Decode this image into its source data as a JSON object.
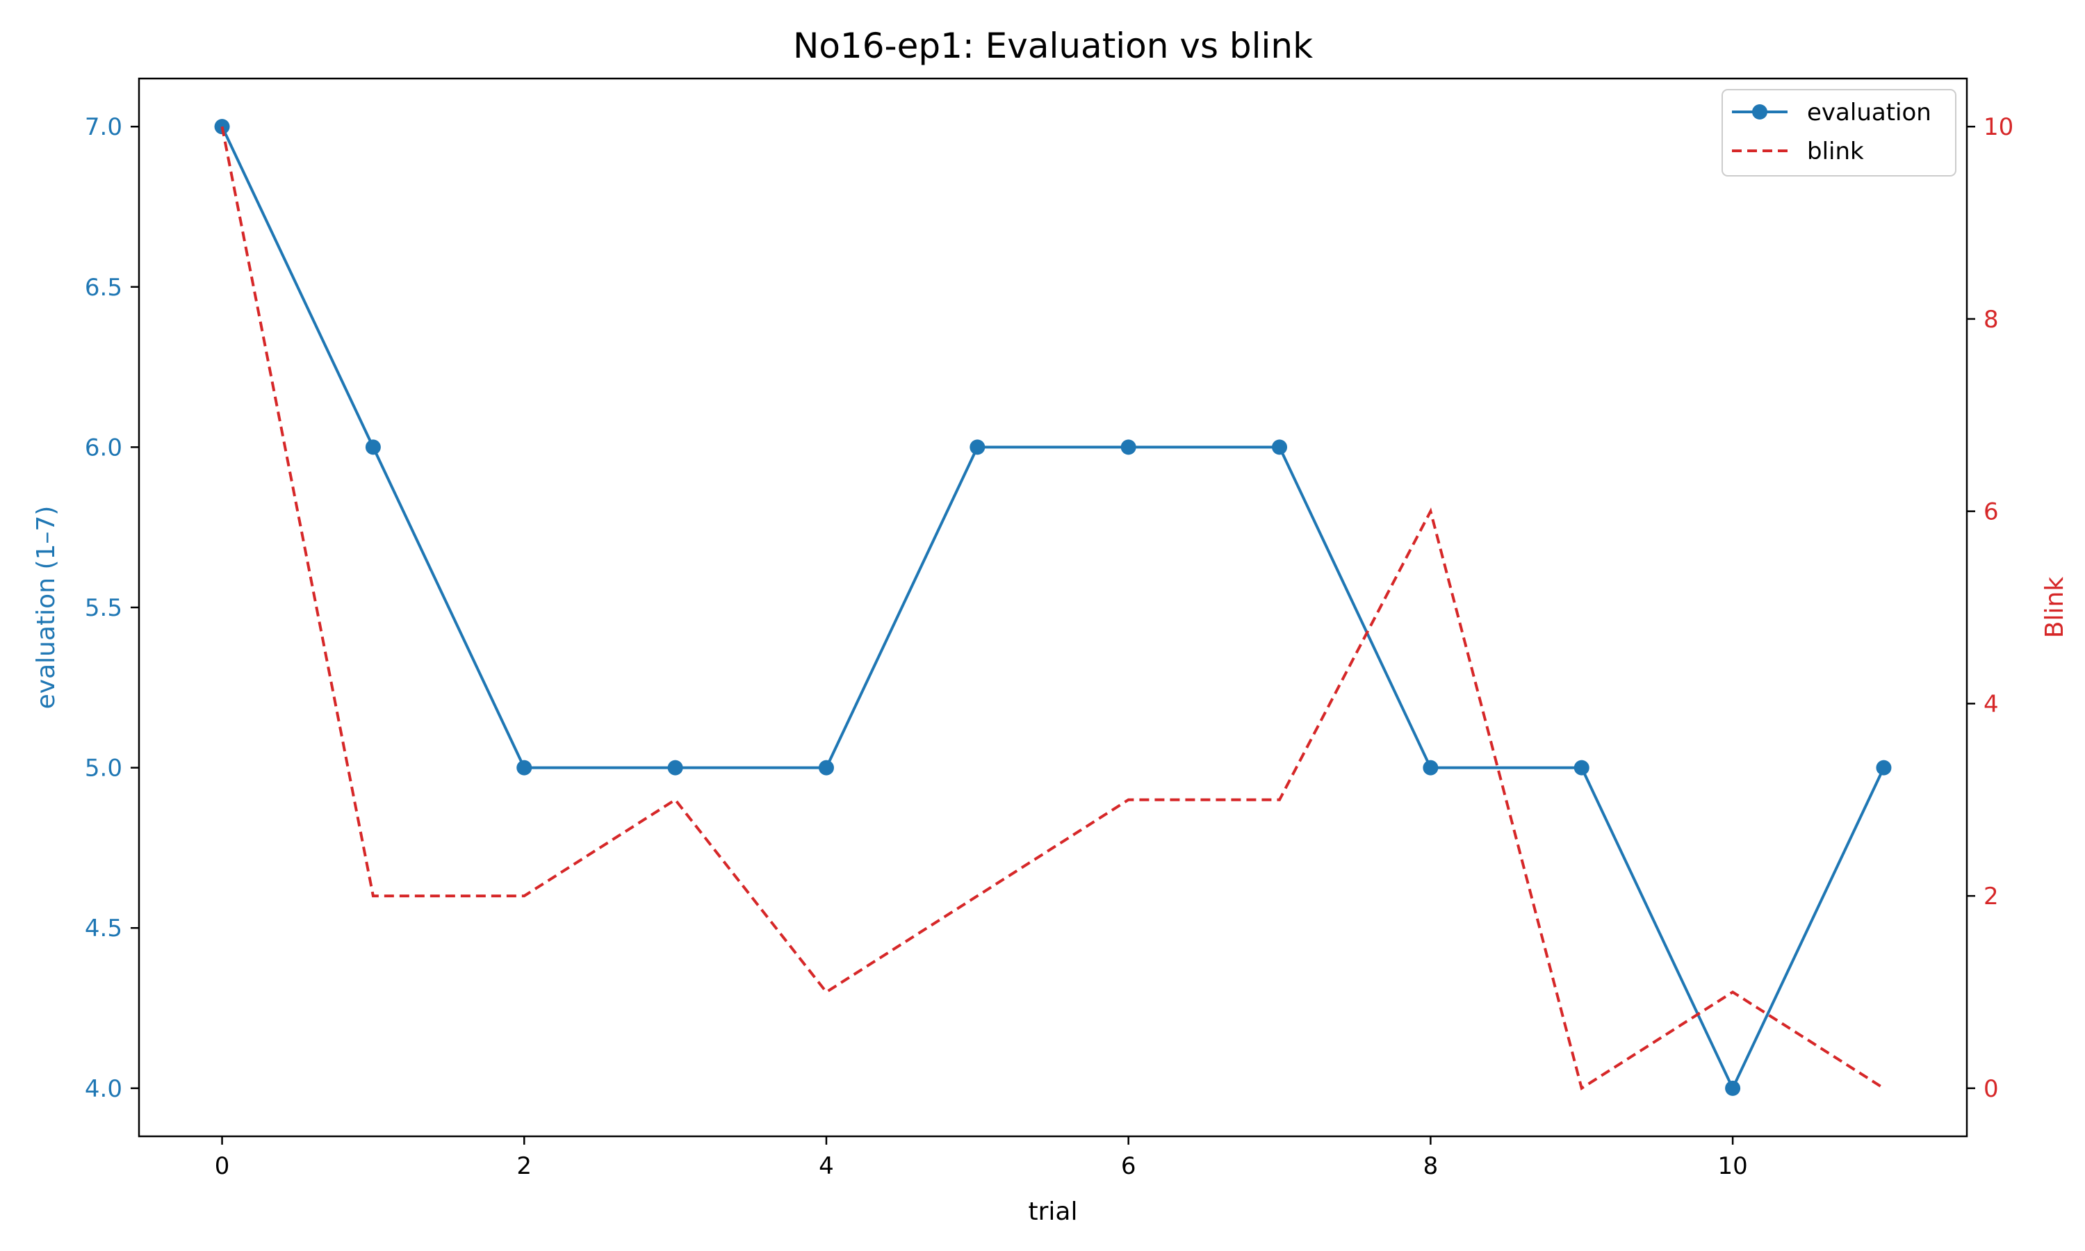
{
  "chart_data": {
    "type": "line",
    "title": "No16-ep1: Evaluation vs blink",
    "xlabel": "trial",
    "ylabel_left": "evaluation (1–7)",
    "ylabel_right": "Blink",
    "x": [
      0,
      1,
      2,
      3,
      4,
      5,
      6,
      7,
      8,
      9,
      10,
      11
    ],
    "xlim": [
      -0.55,
      11.55
    ],
    "x_ticks": [
      0,
      2,
      4,
      6,
      8,
      10
    ],
    "ylim_left": [
      3.85,
      7.15
    ],
    "y_ticks_left": [
      "4.0",
      "4.5",
      "5.0",
      "5.5",
      "6.0",
      "6.5",
      "7.0"
    ],
    "ylim_right": [
      -0.5,
      10.5
    ],
    "y_ticks_right": [
      0,
      2,
      4,
      6,
      8,
      10
    ],
    "grid": false,
    "legend_position": "upper right",
    "series": [
      {
        "name": "evaluation",
        "axis": "left",
        "style": "solid-with-markers",
        "color": "#1f77b4",
        "values": [
          7,
          6,
          5,
          5,
          5,
          6,
          6,
          6,
          5,
          5,
          4,
          5
        ]
      },
      {
        "name": "blink",
        "axis": "right",
        "style": "dashed",
        "color": "#d62728",
        "values": [
          10,
          2,
          2,
          3,
          1,
          2,
          3,
          3,
          6,
          0,
          1,
          0
        ]
      }
    ]
  }
}
